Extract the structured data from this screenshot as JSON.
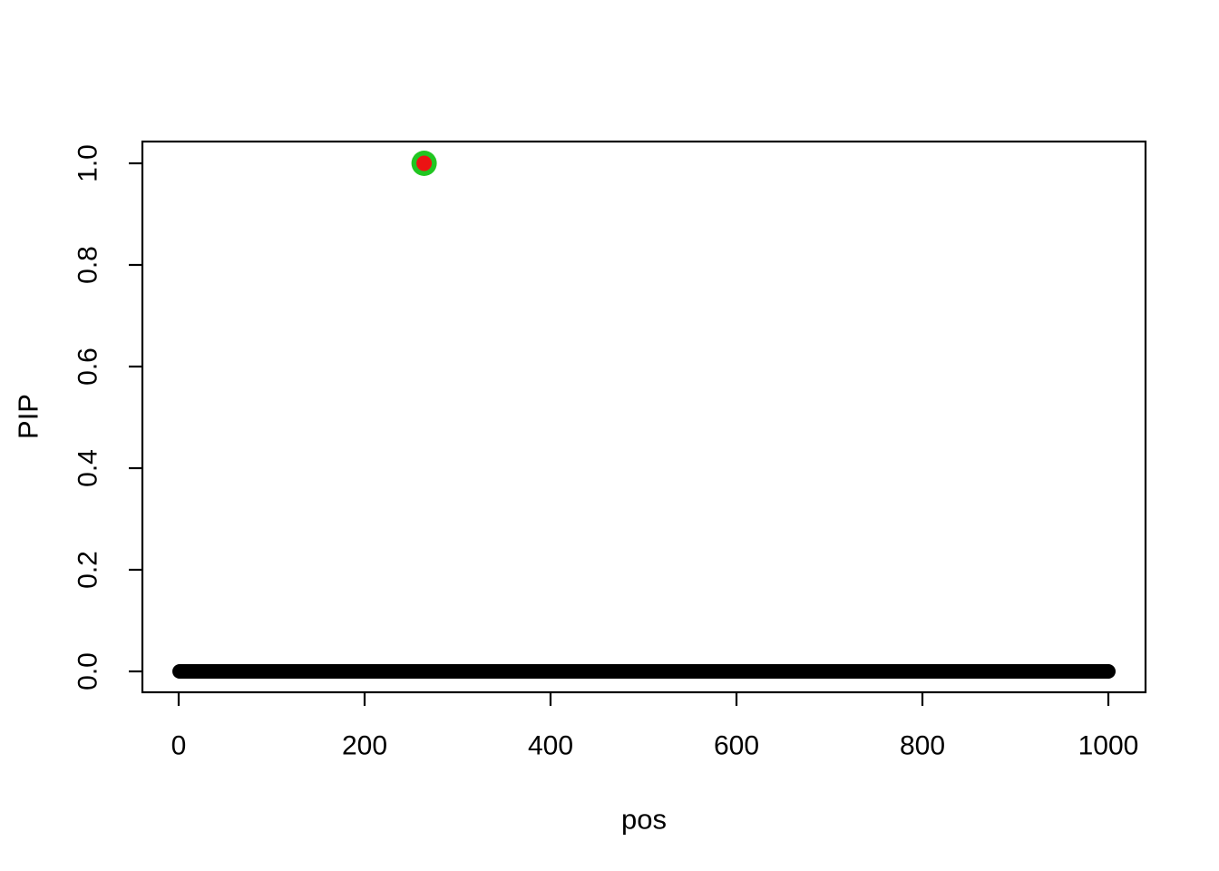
{
  "figure": {
    "background_color": "#FFFFFF",
    "axis_color": "#000000"
  },
  "chart_data": {
    "type": "scatter",
    "title": "",
    "xlabel": "pos",
    "ylabel": "PIP",
    "x_axis": {
      "ticks": [
        0,
        200,
        400,
        600,
        800,
        1000
      ],
      "tick_labels": [
        "0",
        "200",
        "400",
        "600",
        "800",
        "1000"
      ],
      "range": [
        -40,
        1040
      ]
    },
    "y_axis": {
      "ticks": [
        0.0,
        0.2,
        0.4,
        0.6,
        0.8,
        1.0
      ],
      "tick_labels": [
        "0.0",
        "0.2",
        "0.4",
        "0.6",
        "0.8",
        "1.0"
      ],
      "range": [
        -0.04,
        1.04
      ]
    },
    "grid": false,
    "legend": null,
    "series": [
      {
        "name": "snp-pip-points",
        "marker": "filled-circle",
        "color": "#000000",
        "x_start": 1,
        "x_end": 1000,
        "x_step": 1,
        "y_constant": 0.0
      },
      {
        "name": "highlight-ring",
        "marker": "filled-circle-large",
        "color": "#21C621",
        "points": [
          [
            264,
            1.0
          ]
        ]
      },
      {
        "name": "highlight-dot",
        "marker": "filled-circle-medium",
        "color": "#EC1313",
        "points": [
          [
            264,
            1.0
          ]
        ]
      }
    ]
  }
}
